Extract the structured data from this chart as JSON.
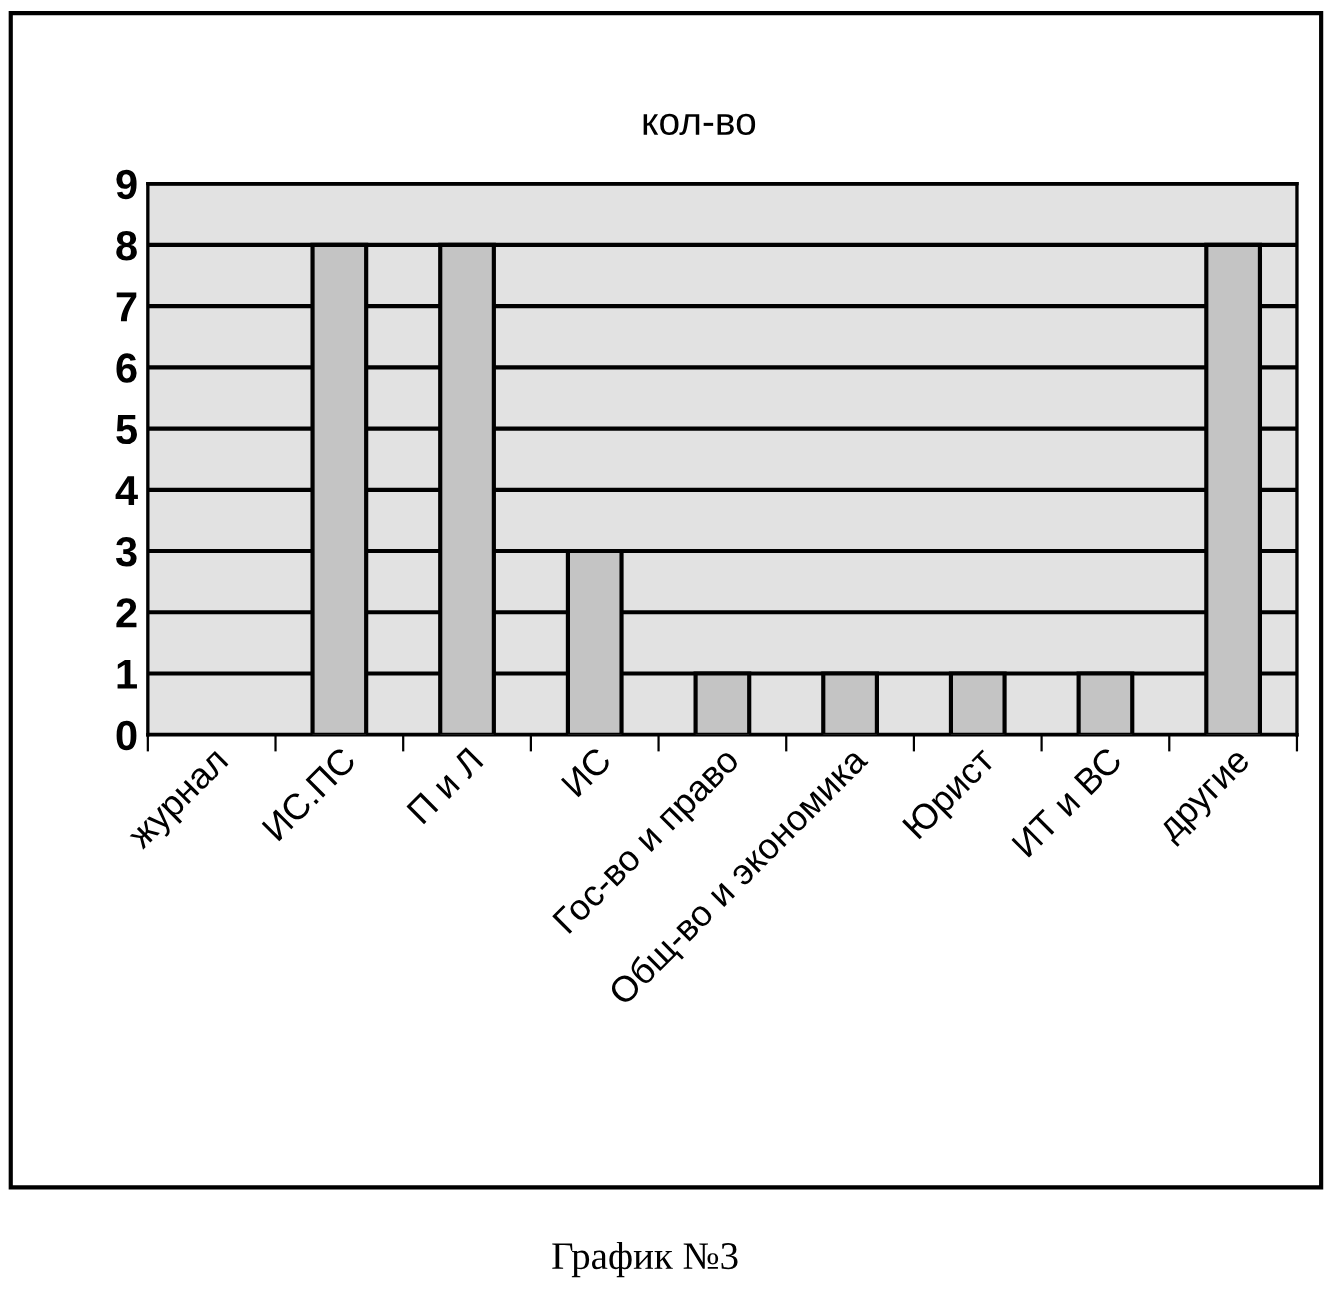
{
  "chart_data": {
    "type": "bar",
    "title": "кол-во",
    "categories": [
      "журнал",
      "ИС.ПС",
      "П и Л",
      "ИС",
      "Гос-во и право",
      "Общ-во и экономика",
      "Юрист",
      "ИТ и ВС",
      "другие"
    ],
    "values": [
      null,
      8,
      8,
      3,
      1,
      1,
      1,
      1,
      8
    ],
    "color": "#c4c4c4",
    "ylim": [
      0,
      9
    ],
    "yticks": [
      0,
      1,
      2,
      3,
      4,
      5,
      6,
      7,
      8,
      9
    ],
    "grid": "y",
    "legend": false,
    "annotations": [
      "График №3"
    ]
  }
}
